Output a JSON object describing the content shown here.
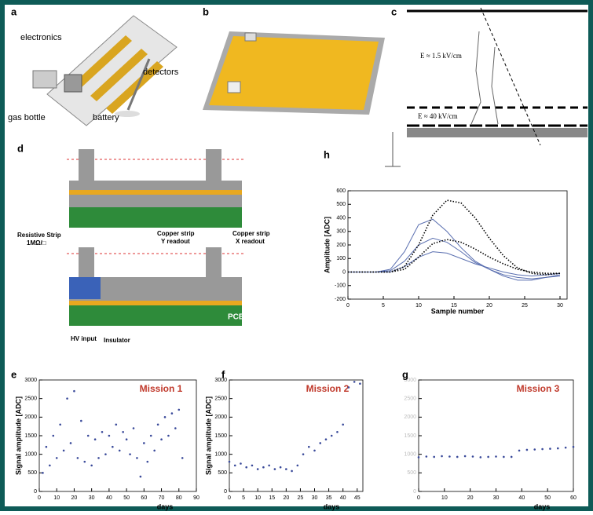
{
  "panels": {
    "a": {
      "label": "a",
      "texts": [
        "electronics",
        "detectors",
        "gas bottle",
        "battery"
      ]
    },
    "b": {
      "label": "b"
    },
    "c": {
      "label": "c",
      "texts": [
        "E ≈ 1.5 kV/cm",
        "E ≈ 40 kV/cm"
      ]
    },
    "d": {
      "label": "d",
      "texts": [
        "Resistive Strip",
        "1MΩ/□",
        "Copper strip",
        "Y readout",
        "Copper strip",
        "X readout",
        "PCB",
        "HV input",
        "Insulator"
      ]
    }
  },
  "chart_data": [
    {
      "type": "line",
      "panel_label": "h",
      "xlabel": "Sample number",
      "ylabel": "Amplitude [ADC]",
      "x": [
        0,
        2,
        4,
        6,
        8,
        10,
        12,
        14,
        16,
        18,
        20,
        22,
        24,
        26,
        28,
        30
      ],
      "series": [
        {
          "color": "#5a6fb0",
          "style": "solid",
          "values": [
            0,
            0,
            0,
            20,
            150,
            350,
            390,
            300,
            180,
            80,
            20,
            -30,
            -60,
            -60,
            -40,
            -20
          ]
        },
        {
          "color": "#5a6fb0",
          "style": "solid",
          "values": [
            0,
            0,
            0,
            10,
            80,
            200,
            250,
            220,
            150,
            70,
            20,
            -20,
            -40,
            -50,
            -40,
            -30
          ]
        },
        {
          "color": "#5a6fb0",
          "style": "solid",
          "values": [
            0,
            0,
            0,
            0,
            40,
            110,
            150,
            140,
            100,
            60,
            30,
            0,
            -20,
            -30,
            -20,
            -10
          ]
        },
        {
          "color": "#000000",
          "style": "dotted",
          "values": [
            0,
            0,
            0,
            0,
            40,
            200,
            420,
            530,
            510,
            400,
            250,
            120,
            30,
            -10,
            -20,
            -10
          ]
        },
        {
          "color": "#000000",
          "style": "dotted",
          "values": [
            0,
            0,
            0,
            0,
            20,
            110,
            210,
            240,
            220,
            170,
            110,
            60,
            20,
            0,
            -10,
            -10
          ]
        }
      ],
      "xlim": [
        0,
        31
      ],
      "ylim": [
        -200,
        600
      ],
      "xticks": [
        0,
        5,
        10,
        15,
        20,
        25,
        30
      ],
      "yticks": [
        -200,
        -100,
        0,
        100,
        200,
        300,
        400,
        500,
        600
      ]
    },
    {
      "type": "scatter",
      "panel_label": "e",
      "title": "Mission 1",
      "xlabel": "days",
      "ylabel": "Signal amplitude [ADC]",
      "color": "#3a4a9a",
      "x": [
        2,
        4,
        6,
        8,
        10,
        12,
        14,
        16,
        18,
        20,
        22,
        24,
        26,
        28,
        30,
        32,
        34,
        36,
        38,
        40,
        42,
        44,
        46,
        48,
        50,
        52,
        54,
        56,
        58,
        60,
        62,
        64,
        66,
        68,
        70,
        72,
        74,
        76,
        78,
        80,
        82
      ],
      "values": [
        500,
        1200,
        700,
        1500,
        900,
        1800,
        1100,
        2500,
        1300,
        2700,
        900,
        1900,
        800,
        1500,
        700,
        1400,
        900,
        1600,
        1000,
        1500,
        1200,
        1800,
        1100,
        1600,
        1400,
        1000,
        1700,
        900,
        400,
        1300,
        800,
        1500,
        1100,
        1800,
        1400,
        2000,
        1500,
        2100,
        1700,
        2200,
        900
      ],
      "xlim": [
        0,
        90
      ],
      "ylim": [
        0,
        3000
      ],
      "xticks": [
        0,
        10,
        20,
        30,
        40,
        50,
        60,
        70,
        80,
        90
      ],
      "yticks": [
        0,
        500,
        1000,
        1500,
        2000,
        2500,
        3000
      ]
    },
    {
      "type": "scatter",
      "panel_label": "f",
      "title": "Mission 2",
      "xlabel": "days",
      "ylabel": "Signal amplitude [ADC]",
      "color": "#3a4a9a",
      "x": [
        0,
        2,
        4,
        6,
        8,
        10,
        12,
        14,
        16,
        18,
        20,
        22,
        24,
        26,
        28,
        30,
        32,
        34,
        36,
        38,
        40,
        42,
        44,
        46
      ],
      "values": [
        800,
        700,
        750,
        650,
        700,
        600,
        650,
        700,
        600,
        650,
        600,
        550,
        700,
        1000,
        1200,
        1100,
        1300,
        1400,
        1500,
        1600,
        1800,
        2800,
        2950,
        2900
      ],
      "xlim": [
        0,
        47
      ],
      "ylim": [
        0,
        3000
      ],
      "xticks": [
        0,
        5,
        10,
        15,
        20,
        25,
        30,
        35,
        40,
        45
      ],
      "yticks": [
        0,
        500,
        1000,
        1500,
        2000,
        2500,
        3000
      ]
    },
    {
      "type": "scatter",
      "panel_label": "g",
      "title": "Mission 3",
      "xlabel": "days",
      "color": "#3a4a9a",
      "x": [
        0,
        3,
        6,
        9,
        12,
        15,
        18,
        21,
        24,
        27,
        30,
        33,
        36,
        39,
        42,
        45,
        48,
        51,
        54,
        57,
        60
      ],
      "values": [
        920,
        940,
        930,
        950,
        940,
        930,
        950,
        940,
        920,
        930,
        940,
        930,
        930,
        1100,
        1120,
        1130,
        1140,
        1150,
        1160,
        1180,
        1200
      ],
      "xlim": [
        0,
        60
      ],
      "ylim": [
        0,
        3000
      ],
      "xticks": [
        0,
        10,
        20,
        30,
        40,
        50,
        60
      ],
      "yticks": [
        0,
        500,
        1000,
        1500,
        2000,
        2500,
        3000
      ]
    }
  ]
}
